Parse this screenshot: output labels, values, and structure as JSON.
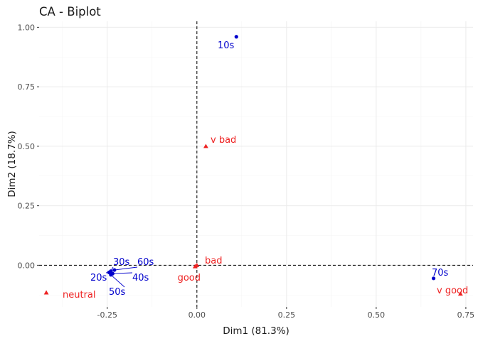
{
  "chart_data": {
    "type": "scatter",
    "title": "CA - Biplot",
    "xlabel": "Dim1 (81.3%)",
    "ylabel": "Dim2 (18.7%)",
    "xlim": [
      -0.44,
      0.77
    ],
    "ylim": [
      -0.175,
      1.025
    ],
    "x_ticks": [
      -0.25,
      0.0,
      0.25,
      0.5,
      0.75
    ],
    "x_tick_labels": [
      "-0.25",
      "0.00",
      "0.25",
      "0.50",
      "0.75"
    ],
    "y_ticks": [
      0.0,
      0.25,
      0.5,
      0.75,
      1.0
    ],
    "y_tick_labels": [
      "0.00",
      "0.25",
      "0.50",
      "0.75",
      "1.00"
    ],
    "grid": true,
    "reference_lines": {
      "x": 0,
      "y": 0
    },
    "colors": {
      "rows": "#0000cc",
      "cols": "#ee2222"
    },
    "series": [
      {
        "marker": "circle",
        "color": "#0000cc",
        "points": [
          {
            "label": "10s",
            "x": 0.11,
            "y": 0.96
          },
          {
            "label": "20s",
            "x": -0.245,
            "y": -0.03
          },
          {
            "label": "30s",
            "x": -0.24,
            "y": -0.025
          },
          {
            "label": "40s",
            "x": -0.235,
            "y": -0.035
          },
          {
            "label": "50s",
            "x": -0.24,
            "y": -0.04
          },
          {
            "label": "60s",
            "x": -0.23,
            "y": -0.02
          },
          {
            "label": "70s",
            "x": 0.66,
            "y": -0.055
          }
        ]
      },
      {
        "marker": "triangle",
        "color": "#ee2222",
        "points": [
          {
            "label": "v bad",
            "x": 0.025,
            "y": 0.5
          },
          {
            "label": "bad",
            "x": 0.0,
            "y": 0.0
          },
          {
            "label": "good",
            "x": -0.005,
            "y": -0.005
          },
          {
            "label": "neutral",
            "x": -0.42,
            "y": -0.115
          },
          {
            "label": "v good",
            "x": 0.735,
            "y": -0.12
          }
        ]
      }
    ]
  }
}
